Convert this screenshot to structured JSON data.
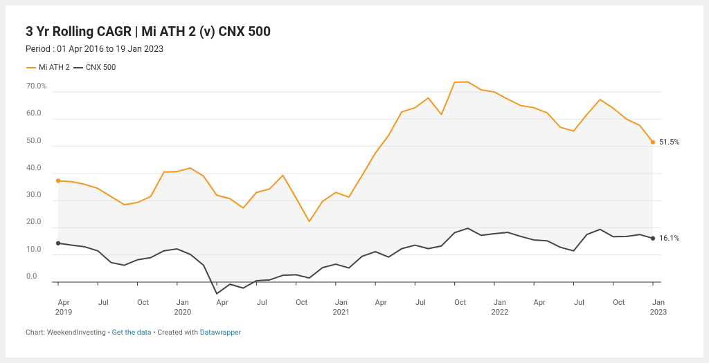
{
  "chart_data": {
    "type": "line",
    "title": "3 Yr Rolling CAGR | Mi ATH 2 (v) CNX 500",
    "subtitle": "Period : 01 Apr 2016 to 19 Jan 2023",
    "categories": [
      "Apr\n2019",
      null,
      null,
      "Jul",
      null,
      null,
      "Oct",
      null,
      null,
      "Jan\n2020",
      null,
      null,
      "Apr",
      null,
      null,
      "Jul",
      null,
      null,
      "Oct",
      null,
      null,
      "Jan\n2021",
      null,
      null,
      "Apr",
      null,
      null,
      "Jul",
      null,
      null,
      "Oct",
      null,
      null,
      "Jan\n2022",
      null,
      null,
      "Apr",
      null,
      null,
      "Jul",
      null,
      null,
      "Oct",
      null,
      null,
      "Jan\n2023"
    ],
    "series": [
      {
        "name": "Mi ATH 2",
        "color": "#f5961e",
        "values": [
          37.3,
          37,
          36,
          34.5,
          31.5,
          28.5,
          29.3,
          31.5,
          40.5,
          40.7,
          42,
          39,
          32,
          30.7,
          27.3,
          33,
          34.3,
          39.3,
          31,
          22.3,
          29.7,
          33,
          31.3,
          39.3,
          47.5,
          54,
          62.7,
          64.2,
          67.8,
          61.7,
          73.6,
          73.7,
          70.8,
          70,
          67.4,
          65,
          64.2,
          62.3,
          57,
          55.6,
          61.7,
          67.2,
          64,
          60,
          57.7,
          51.5
        ],
        "value_labels": [
          null,
          null,
          null,
          null,
          null,
          null,
          null,
          null,
          null,
          null,
          null,
          null,
          null,
          null,
          null,
          null,
          null,
          null,
          null,
          null,
          null,
          null,
          null,
          null,
          null,
          null,
          null,
          null,
          null,
          null,
          null,
          null,
          null,
          null,
          null,
          null,
          null,
          null,
          null,
          null,
          null,
          null,
          null,
          null,
          null,
          "51.5%"
        ]
      },
      {
        "name": "CNX 500",
        "color": "#444444",
        "values": [
          14.3,
          13.6,
          13,
          11.5,
          7.2,
          6.2,
          8.2,
          9,
          11.5,
          12.2,
          10.2,
          6.2,
          -4.3,
          -0.8,
          -2.2,
          0.5,
          0.8,
          2.5,
          2.7,
          1.5,
          5.3,
          6.6,
          5.2,
          9.5,
          11.2,
          9.2,
          12.3,
          13.6,
          12.3,
          13.3,
          18.2,
          19.8,
          17.2,
          17.8,
          18.3,
          16.8,
          15.5,
          15.2,
          12.8,
          11.5,
          17.5,
          19.4,
          16.7,
          16.8,
          17.5,
          16.1
        ],
        "value_labels": [
          null,
          null,
          null,
          null,
          null,
          null,
          null,
          null,
          null,
          null,
          null,
          null,
          null,
          null,
          null,
          null,
          null,
          null,
          null,
          null,
          null,
          null,
          null,
          null,
          null,
          null,
          null,
          null,
          null,
          null,
          null,
          null,
          null,
          null,
          null,
          null,
          null,
          null,
          null,
          null,
          null,
          null,
          null,
          null,
          null,
          "16.1%"
        ]
      }
    ],
    "ylim": [
      -5,
      70
    ],
    "yticks": [
      {
        "value": 0,
        "label": "0.0"
      },
      {
        "value": 10,
        "label": "10.0"
      },
      {
        "value": 20,
        "label": "20.0"
      },
      {
        "value": 30,
        "label": "30.0"
      },
      {
        "value": 40,
        "label": "40.0"
      },
      {
        "value": 50,
        "label": "50.0"
      },
      {
        "value": 60,
        "label": "60.0"
      },
      {
        "value": 70,
        "label": "70.0%"
      }
    ],
    "grid": true,
    "footer": [
      "Chart: WeekendInvesting • ",
      "Get the data",
      " • Created with ",
      "Datawrapper"
    ]
  }
}
